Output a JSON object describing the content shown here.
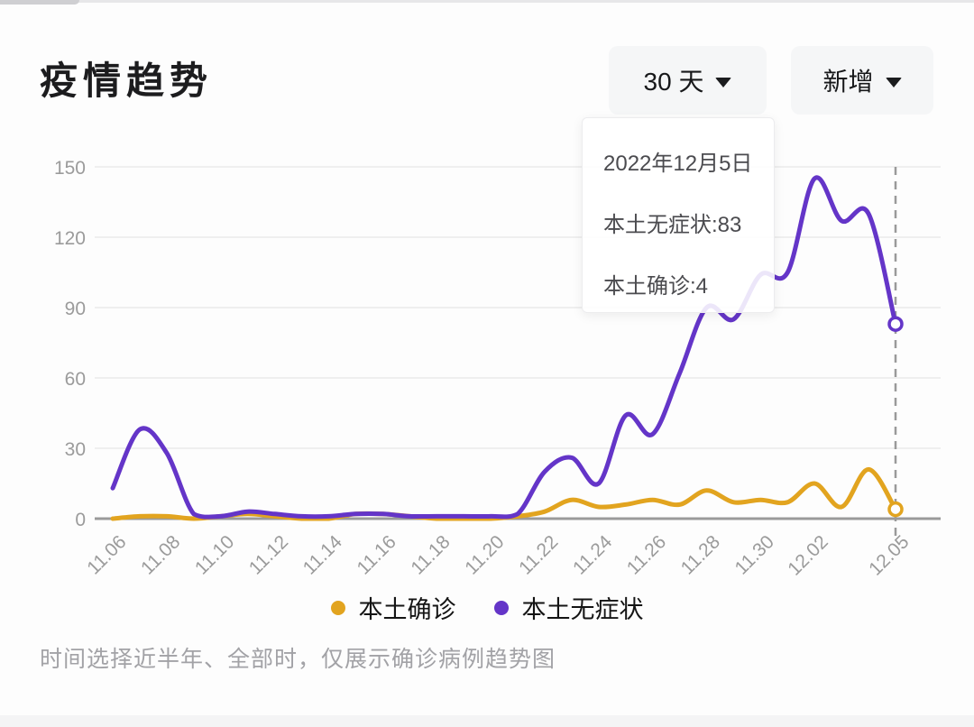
{
  "header": {
    "title": "疫情趋势",
    "range_dropdown": {
      "label": "30 天"
    },
    "type_dropdown": {
      "label": "新增"
    }
  },
  "tooltip": {
    "date": "2022年12月5日",
    "asymptomatic_line": "本土无症状:83",
    "confirmed_line": "本土确诊:4"
  },
  "legend": {
    "items": [
      {
        "label": "本土确诊",
        "color": "#E2A41F"
      },
      {
        "label": "本土无症状",
        "color": "#6435C8"
      }
    ]
  },
  "footer": {
    "note": "时间选择近半年、全部时，仅展示确诊病例趋势图"
  },
  "chart_data": {
    "type": "line",
    "smooth": true,
    "grid": true,
    "legend_position": "bottom",
    "ylim": [
      0,
      150
    ],
    "yticks": [
      0,
      30,
      60,
      90,
      120,
      150
    ],
    "x": [
      "11.06",
      "11.07",
      "11.08",
      "11.09",
      "11.10",
      "11.11",
      "11.12",
      "11.13",
      "11.14",
      "11.15",
      "11.16",
      "11.17",
      "11.18",
      "11.19",
      "11.20",
      "11.21",
      "11.22",
      "11.23",
      "11.24",
      "11.25",
      "11.26",
      "11.27",
      "11.28",
      "11.29",
      "11.30",
      "12.01",
      "12.02",
      "12.03",
      "12.04",
      "12.05"
    ],
    "xtick_labels": [
      "11.06",
      "11.08",
      "11.10",
      "11.12",
      "11.14",
      "11.16",
      "11.18",
      "11.20",
      "11.22",
      "11.24",
      "11.26",
      "11.28",
      "11.30",
      "12.02",
      "12.05"
    ],
    "series": [
      {
        "name": "本土确诊",
        "color": "#E2A41F",
        "values": [
          0,
          1,
          1,
          0,
          1,
          2,
          1,
          0,
          0,
          2,
          2,
          1,
          0,
          0,
          0,
          1,
          3,
          8,
          5,
          6,
          8,
          6,
          12,
          7,
          8,
          7,
          15,
          5,
          21,
          4
        ]
      },
      {
        "name": "本土无症状",
        "color": "#6435C8",
        "values": [
          13,
          38,
          28,
          2,
          1,
          3,
          2,
          1,
          1,
          2,
          2,
          1,
          1,
          1,
          1,
          2,
          20,
          26,
          15,
          44,
          36,
          62,
          90,
          85,
          104,
          105,
          145,
          127,
          130,
          83
        ]
      }
    ],
    "highlight": {
      "x": "12.05",
      "style": "dashed-vertical-line",
      "marker": "open-circle"
    }
  }
}
